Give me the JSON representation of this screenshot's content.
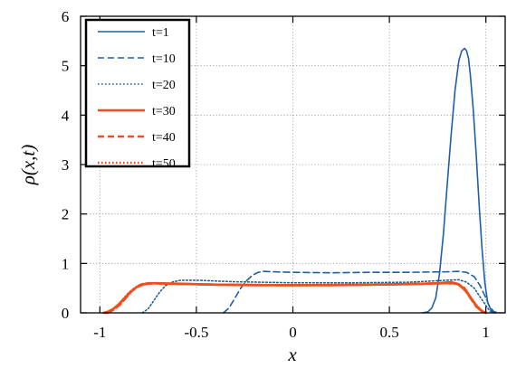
{
  "chart_data": {
    "type": "line",
    "title": "",
    "xlabel": "x",
    "ylabel": "ρ(x,t)",
    "xlim": [
      -1.1,
      1.1
    ],
    "ylim": [
      0,
      6
    ],
    "xticks": [
      {
        "value": -1,
        "label": "-1"
      },
      {
        "value": -0.5,
        "label": "-0.5"
      },
      {
        "value": 0,
        "label": "0"
      },
      {
        "value": 0.5,
        "label": "0.5"
      },
      {
        "value": 1,
        "label": "1"
      }
    ],
    "yticks": [
      {
        "value": 0,
        "label": "0"
      },
      {
        "value": 1,
        "label": "1"
      },
      {
        "value": 2,
        "label": "2"
      },
      {
        "value": 3,
        "label": "3"
      },
      {
        "value": 4,
        "label": "4"
      },
      {
        "value": 5,
        "label": "5"
      },
      {
        "value": 6,
        "label": "6"
      }
    ],
    "grid": true,
    "legend_position": "top-left",
    "series": [
      {
        "name": "t=1",
        "color": "#1f5fa8",
        "style": "solid",
        "points": [
          [
            0.67,
            0
          ],
          [
            0.7,
            0.02
          ],
          [
            0.72,
            0.1
          ],
          [
            0.74,
            0.3
          ],
          [
            0.76,
            0.8
          ],
          [
            0.78,
            1.6
          ],
          [
            0.8,
            2.6
          ],
          [
            0.82,
            3.6
          ],
          [
            0.84,
            4.5
          ],
          [
            0.86,
            5.1
          ],
          [
            0.875,
            5.3
          ],
          [
            0.89,
            5.35
          ],
          [
            0.9,
            5.3
          ],
          [
            0.91,
            5.15
          ],
          [
            0.92,
            4.8
          ],
          [
            0.935,
            4.1
          ],
          [
            0.95,
            3.2
          ],
          [
            0.965,
            2.2
          ],
          [
            0.98,
            1.3
          ],
          [
            0.995,
            0.6
          ],
          [
            1.01,
            0.2
          ],
          [
            1.03,
            0.03
          ],
          [
            1.05,
            0
          ]
        ]
      },
      {
        "name": "t=10",
        "color": "#1f5fa8",
        "style": "dashed",
        "points": [
          [
            -0.36,
            0
          ],
          [
            -0.33,
            0.1
          ],
          [
            -0.3,
            0.3
          ],
          [
            -0.27,
            0.5
          ],
          [
            -0.24,
            0.65
          ],
          [
            -0.21,
            0.76
          ],
          [
            -0.18,
            0.82
          ],
          [
            -0.15,
            0.84
          ],
          [
            -0.1,
            0.83
          ],
          [
            0,
            0.82
          ],
          [
            0.2,
            0.81
          ],
          [
            0.4,
            0.82
          ],
          [
            0.6,
            0.82
          ],
          [
            0.8,
            0.83
          ],
          [
            0.86,
            0.84
          ],
          [
            0.9,
            0.82
          ],
          [
            0.94,
            0.73
          ],
          [
            0.97,
            0.55
          ],
          [
            1,
            0.3
          ],
          [
            1.02,
            0.12
          ],
          [
            1.04,
            0.03
          ],
          [
            1.06,
            0
          ]
        ]
      },
      {
        "name": "t=20",
        "color": "#1f5fa8",
        "style": "dotted",
        "points": [
          [
            -0.78,
            0
          ],
          [
            -0.75,
            0.08
          ],
          [
            -0.72,
            0.25
          ],
          [
            -0.69,
            0.42
          ],
          [
            -0.66,
            0.55
          ],
          [
            -0.62,
            0.63
          ],
          [
            -0.58,
            0.66
          ],
          [
            -0.5,
            0.66
          ],
          [
            -0.3,
            0.63
          ],
          [
            0,
            0.61
          ],
          [
            0.3,
            0.61
          ],
          [
            0.6,
            0.62
          ],
          [
            0.8,
            0.66
          ],
          [
            0.86,
            0.67
          ],
          [
            0.9,
            0.62
          ],
          [
            0.94,
            0.5
          ],
          [
            0.97,
            0.32
          ],
          [
            1,
            0.15
          ],
          [
            1.02,
            0.04
          ],
          [
            1.04,
            0
          ]
        ]
      },
      {
        "name": "t=30",
        "color": "#f04e1b",
        "style": "solid",
        "points": [
          [
            -0.98,
            0
          ],
          [
            -0.96,
            0.02
          ],
          [
            -0.93,
            0.08
          ],
          [
            -0.9,
            0.18
          ],
          [
            -0.87,
            0.3
          ],
          [
            -0.84,
            0.42
          ],
          [
            -0.81,
            0.52
          ],
          [
            -0.77,
            0.58
          ],
          [
            -0.72,
            0.6
          ],
          [
            -0.6,
            0.59
          ],
          [
            -0.4,
            0.57
          ],
          [
            -0.2,
            0.56
          ],
          [
            0,
            0.56
          ],
          [
            0.2,
            0.56
          ],
          [
            0.4,
            0.57
          ],
          [
            0.6,
            0.58
          ],
          [
            0.75,
            0.6
          ],
          [
            0.82,
            0.62
          ],
          [
            0.86,
            0.58
          ],
          [
            0.9,
            0.42
          ],
          [
            0.93,
            0.25
          ],
          [
            0.96,
            0.1
          ],
          [
            0.98,
            0.03
          ],
          [
            1,
            0
          ]
        ]
      },
      {
        "name": "t=40",
        "color": "#f04e1b",
        "style": "dashed",
        "points": [
          [
            -0.96,
            0
          ],
          [
            -0.93,
            0.06
          ],
          [
            -0.9,
            0.15
          ],
          [
            -0.87,
            0.28
          ],
          [
            -0.84,
            0.42
          ],
          [
            -0.81,
            0.52
          ],
          [
            -0.78,
            0.58
          ],
          [
            -0.74,
            0.6
          ],
          [
            -0.65,
            0.59
          ],
          [
            -0.4,
            0.57
          ],
          [
            0,
            0.56
          ],
          [
            0.4,
            0.57
          ],
          [
            0.7,
            0.59
          ],
          [
            0.8,
            0.6
          ],
          [
            0.85,
            0.59
          ],
          [
            0.89,
            0.48
          ],
          [
            0.92,
            0.3
          ],
          [
            0.95,
            0.13
          ],
          [
            0.98,
            0.03
          ],
          [
            1,
            0
          ]
        ]
      },
      {
        "name": "t=50",
        "color": "#f04e1b",
        "style": "dotted",
        "points": [
          [
            -0.97,
            0
          ],
          [
            -0.94,
            0.05
          ],
          [
            -0.91,
            0.14
          ],
          [
            -0.88,
            0.27
          ],
          [
            -0.85,
            0.4
          ],
          [
            -0.82,
            0.5
          ],
          [
            -0.79,
            0.57
          ],
          [
            -0.75,
            0.6
          ],
          [
            -0.65,
            0.59
          ],
          [
            -0.4,
            0.57
          ],
          [
            0,
            0.56
          ],
          [
            0.4,
            0.57
          ],
          [
            0.7,
            0.59
          ],
          [
            0.8,
            0.6
          ],
          [
            0.85,
            0.59
          ],
          [
            0.89,
            0.5
          ],
          [
            0.92,
            0.32
          ],
          [
            0.95,
            0.15
          ],
          [
            0.98,
            0.04
          ],
          [
            1,
            0
          ]
        ]
      }
    ]
  }
}
